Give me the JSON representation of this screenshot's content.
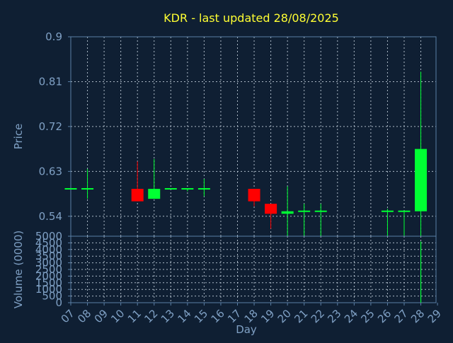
{
  "chart_data": [
    {
      "type": "candlestick",
      "title": "KDR - last updated 28/08/2025",
      "ylabel": "Price",
      "ylim": [
        0.5,
        0.9
      ],
      "yticks": [
        0.54,
        0.63,
        0.72,
        0.81,
        0.9
      ],
      "grid": true,
      "up_color": "#00ff33",
      "down_color": "#ff0000",
      "days": [
        "07",
        "08",
        "09",
        "10",
        "11",
        "12",
        "13",
        "14",
        "15",
        "16",
        "17",
        "18",
        "19",
        "20",
        "21",
        "22",
        "23",
        "24",
        "25",
        "26",
        "27",
        "28",
        "29"
      ],
      "candles": [
        {
          "day": "07",
          "open": 0.595,
          "high": 0.595,
          "low": 0.595,
          "close": 0.595
        },
        {
          "day": "08",
          "open": 0.595,
          "high": 0.635,
          "low": 0.575,
          "close": 0.595
        },
        {
          "day": "11",
          "open": 0.595,
          "high": 0.65,
          "low": 0.57,
          "close": 0.57
        },
        {
          "day": "12",
          "open": 0.575,
          "high": 0.655,
          "low": 0.575,
          "close": 0.595
        },
        {
          "day": "13",
          "open": 0.595,
          "high": 0.595,
          "low": 0.595,
          "close": 0.595
        },
        {
          "day": "14",
          "open": 0.595,
          "high": 0.595,
          "low": 0.59,
          "close": 0.595
        },
        {
          "day": "15",
          "open": 0.595,
          "high": 0.615,
          "low": 0.58,
          "close": 0.595
        },
        {
          "day": "18",
          "open": 0.595,
          "high": 0.595,
          "low": 0.56,
          "close": 0.57
        },
        {
          "day": "19",
          "open": 0.565,
          "high": 0.565,
          "low": 0.515,
          "close": 0.545
        },
        {
          "day": "20",
          "open": 0.545,
          "high": 0.6,
          "low": 0.5,
          "close": 0.55
        },
        {
          "day": "21",
          "open": 0.55,
          "high": 0.565,
          "low": 0.5,
          "close": 0.55
        },
        {
          "day": "22",
          "open": 0.55,
          "high": 0.565,
          "low": 0.5,
          "close": 0.55
        },
        {
          "day": "26",
          "open": 0.55,
          "high": 0.555,
          "low": 0.5,
          "close": 0.55
        },
        {
          "day": "27",
          "open": 0.55,
          "high": 0.55,
          "low": 0.5,
          "close": 0.55
        },
        {
          "day": "28",
          "open": 0.55,
          "high": 0.83,
          "low": 0.5,
          "close": 0.675
        }
      ]
    },
    {
      "type": "bar",
      "ylabel": "Volume (0000)",
      "xlabel": "Day",
      "ylim": [
        0,
        5000
      ],
      "yticks": [
        0,
        500,
        1000,
        1500,
        2000,
        2500,
        3000,
        3500,
        4000,
        4500,
        5000
      ],
      "grid": true,
      "bar_color": "#00ff33",
      "categories": [
        "07",
        "08",
        "09",
        "10",
        "11",
        "12",
        "13",
        "14",
        "15",
        "16",
        "17",
        "18",
        "19",
        "20",
        "21",
        "22",
        "23",
        "24",
        "25",
        "26",
        "27",
        "28",
        "29"
      ],
      "values": [
        0,
        0,
        0,
        0,
        0,
        0,
        0,
        0,
        0,
        0,
        0,
        0,
        0,
        0,
        0,
        0,
        0,
        0,
        0,
        0,
        0,
        4600,
        0
      ]
    }
  ]
}
